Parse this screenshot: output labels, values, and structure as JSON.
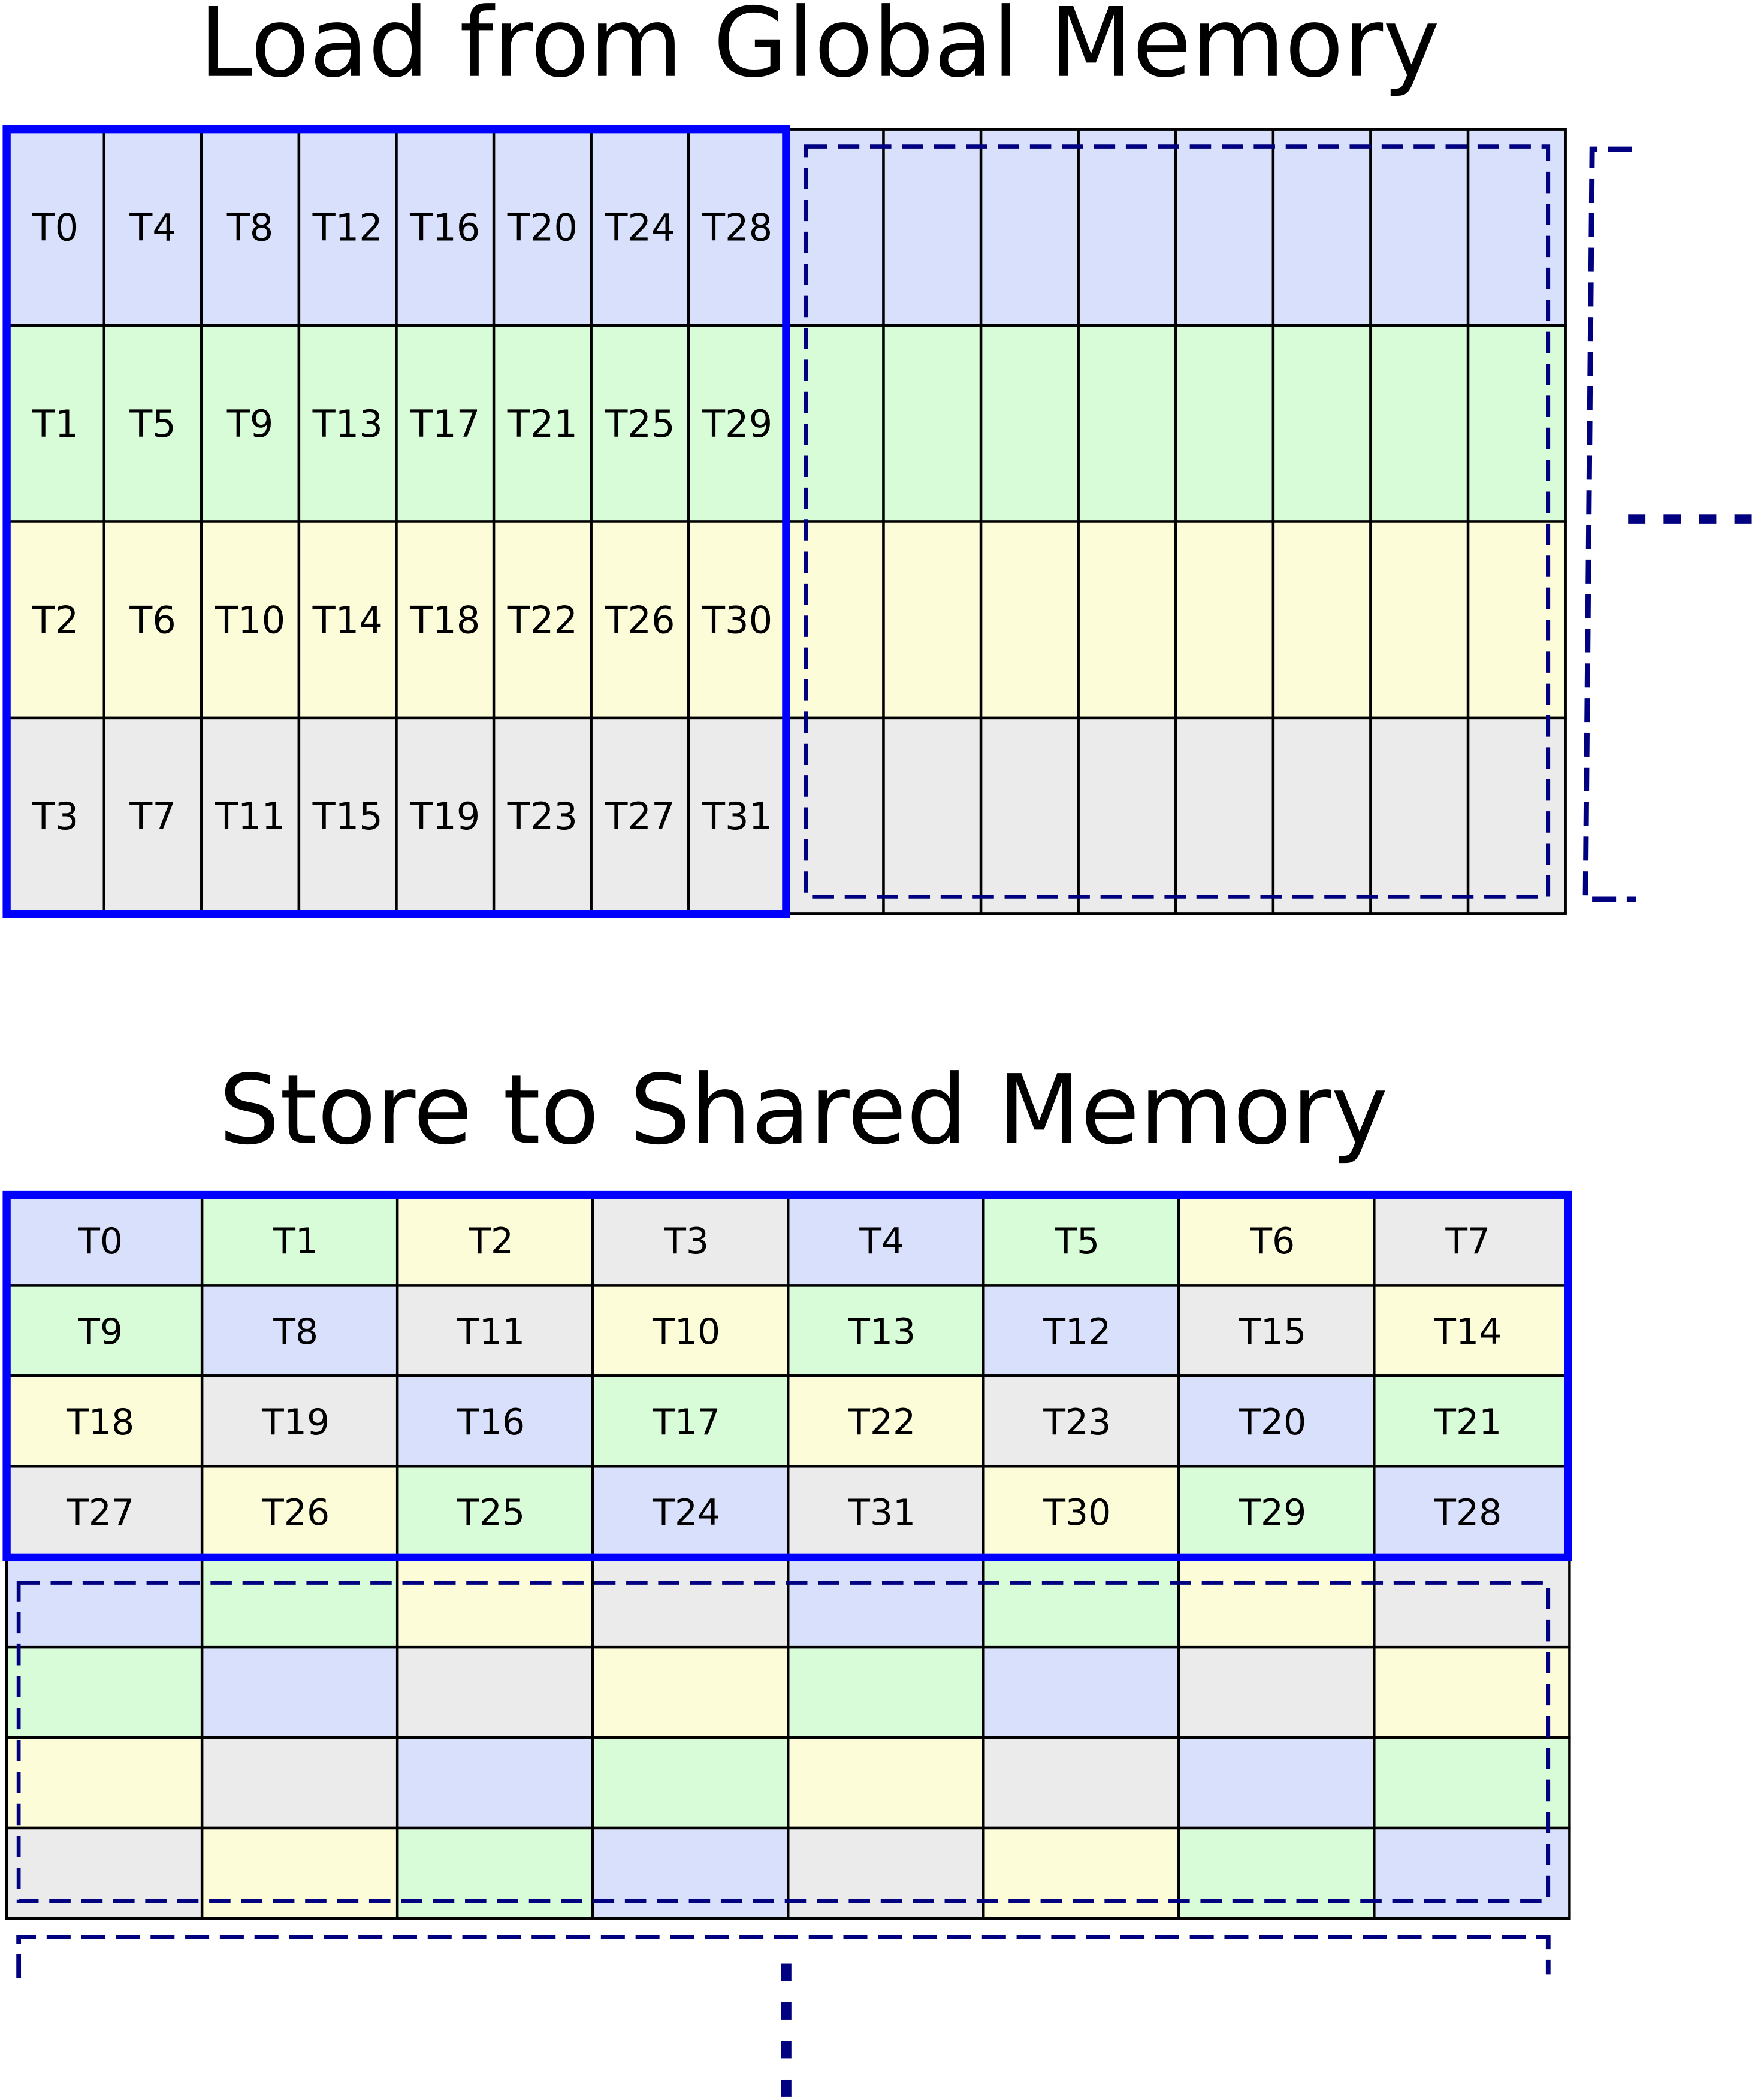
{
  "load_section": {
    "title": "Load from Global Memory",
    "rows": [
      [
        "T0",
        "T4",
        "T8",
        "T12",
        "T16",
        "T20",
        "T24",
        "T28"
      ],
      [
        "T1",
        "T5",
        "T9",
        "T13",
        "T17",
        "T21",
        "T25",
        "T29"
      ],
      [
        "T2",
        "T6",
        "T10",
        "T14",
        "T18",
        "T22",
        "T26",
        "T30"
      ],
      [
        "T3",
        "T7",
        "T11",
        "T15",
        "T19",
        "T23",
        "T27",
        "T31"
      ]
    ],
    "continuation": "...."
  },
  "store_section": {
    "title": "Store to Shared Memory",
    "rows": [
      [
        "T0",
        "T1",
        "T2",
        "T3",
        "T4",
        "T5",
        "T6",
        "T7"
      ],
      [
        "T9",
        "T8",
        "T11",
        "T10",
        "T13",
        "T12",
        "T15",
        "T14"
      ],
      [
        "T18",
        "T19",
        "T16",
        "T17",
        "T22",
        "T23",
        "T20",
        "T21"
      ],
      [
        "T27",
        "T26",
        "T25",
        "T24",
        "T31",
        "T30",
        "T29",
        "T28"
      ]
    ],
    "continuation": "...."
  },
  "colors": {
    "thread_mod4": [
      "#d8e0fc",
      "#d8fcd8",
      "#fcfcd8",
      "#ebebeb"
    ],
    "highlight": "#0000ff",
    "next_tile_dashed": "#000080",
    "grid_line": "#000000"
  }
}
